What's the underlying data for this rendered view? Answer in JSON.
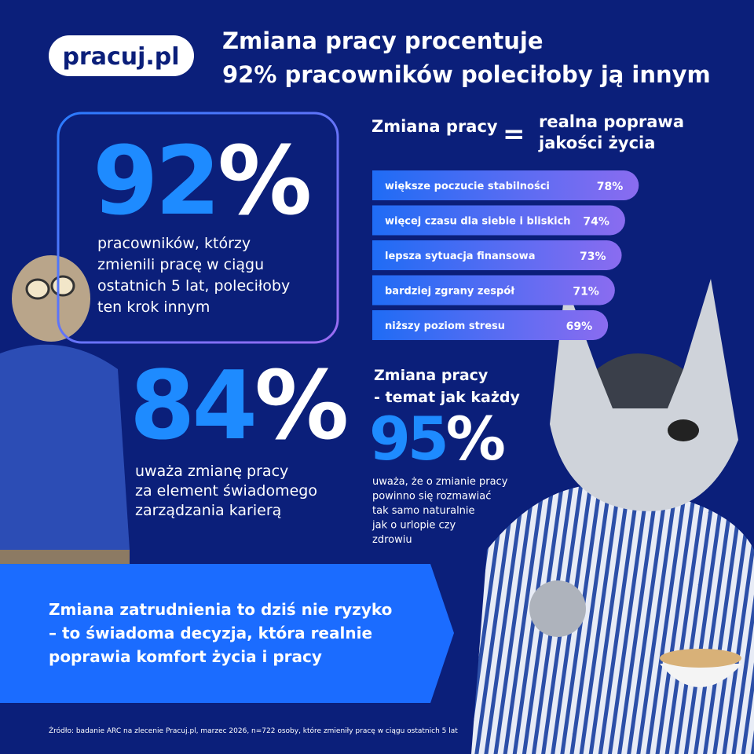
{
  "logo": "pracuj.pl",
  "header": {
    "title": [
      "Zmiana pracy procentuje",
      "92% pracowników poleciłoby ją innym"
    ]
  },
  "stat_main": {
    "number": "92",
    "unit": "%",
    "text": [
      "pracowników, którzy",
      "zmienili pracę w ciągu",
      "ostatnich 5 lat, poleciłoby",
      "ten krok innym"
    ]
  },
  "equation": {
    "left": "Zmiana pracy",
    "sign": "=",
    "right": [
      "realna poprawa",
      "jakości życia"
    ]
  },
  "chart_data": {
    "type": "bar",
    "orientation": "horizontal",
    "categories": [
      "większe poczucie stabilności",
      "więcej czasu dla siebie i bliskich",
      "lepsza sytuacja finansowa",
      "bardziej zgrany zespół",
      "niższy poziom stresu"
    ],
    "values": [
      78,
      74,
      73,
      71,
      69
    ],
    "value_labels": [
      "78%",
      "74%",
      "73%",
      "71%",
      "69%"
    ],
    "color": [
      "#1f6cf5",
      "#8a6cf0"
    ]
  },
  "stat_second": {
    "number": "84",
    "unit": "%",
    "text": [
      "uważa zmianę pracy",
      "za element świadomego",
      "zarządzania karierą"
    ]
  },
  "stat_third": {
    "heading": [
      "Zmiana pracy",
      "- temat jak każdy"
    ],
    "number": "95",
    "unit": "%",
    "text": [
      "uważa, że o zmianie pracy",
      "powinno się rozmawiać",
      "tak samo naturalnie",
      "jak o urlopie czy",
      "zdrowiu"
    ]
  },
  "banner": [
    "Zmiana zatrudnienia to dziś nie ryzyko",
    "– to świadoma decyzja, która realnie",
    "poprawia komfort życia i pracy"
  ],
  "footnote": "Źródło: badanie ARC na zlecenie Pracuj.pl, marzec 2026, n=722 osoby, które zmieniły pracę w ciągu ostatnich 5 lat"
}
